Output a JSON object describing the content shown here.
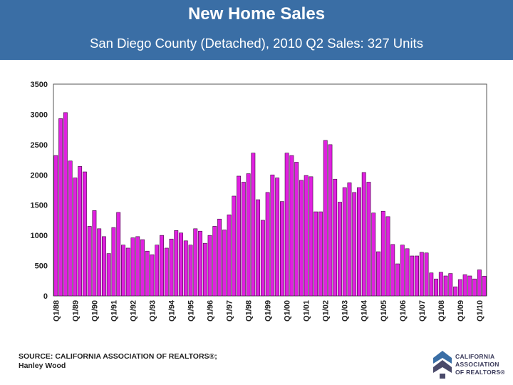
{
  "header": {
    "title": "New Home Sales",
    "subtitle": "San Diego County (Detached), 2010 Q2 Sales: 327 Units"
  },
  "source": {
    "line1": "SOURCE: CALIFORNIA ASSOCIATION OF REALTORS®;",
    "line2": "Hanley Wood"
  },
  "logo": {
    "line1": "CALIFORNIA",
    "line2": "ASSOCIATION",
    "line3": "OF REALTORS®"
  },
  "colors": {
    "header_bg": "#3a6ea5",
    "bar_fill": "#e020e0",
    "bar_stroke": "#3a0a3a"
  },
  "chart_data": {
    "type": "bar",
    "ylim": [
      0,
      3500
    ],
    "yticks": [
      0,
      500,
      1000,
      1500,
      2000,
      2500,
      3000,
      3500
    ],
    "grid": false,
    "xtick_labels": [
      "Q1/88",
      "Q1/89",
      "Q1/90",
      "Q1/91",
      "Q1/92",
      "Q1/93",
      "Q1/94",
      "Q1/95",
      "Q1/96",
      "Q1/97",
      "Q1/98",
      "Q1/99",
      "Q1/00",
      "Q1/01",
      "Q1/02",
      "Q1/03",
      "Q1/04",
      "Q1/05",
      "Q1/06",
      "Q1/07",
      "Q1/08",
      "Q1/09",
      "Q1/10"
    ],
    "values": [
      2320,
      2930,
      3030,
      2230,
      1950,
      2140,
      2050,
      1150,
      1410,
      1110,
      980,
      700,
      1130,
      1380,
      840,
      790,
      960,
      980,
      930,
      740,
      680,
      840,
      1000,
      790,
      940,
      1080,
      1040,
      910,
      840,
      1110,
      1070,
      870,
      1000,
      1150,
      1270,
      1090,
      1340,
      1650,
      1980,
      1880,
      2020,
      2360,
      1590,
      1250,
      1710,
      2000,
      1950,
      1560,
      2360,
      2320,
      2210,
      1910,
      1990,
      1970,
      1390,
      1390,
      2570,
      2500,
      1930,
      1550,
      1790,
      1870,
      1710,
      1790,
      2040,
      1880,
      1370,
      730,
      1400,
      1310,
      850,
      530,
      840,
      780,
      660,
      660,
      720,
      710,
      380,
      280,
      390,
      330,
      370,
      150,
      270,
      350,
      330,
      280,
      430,
      327
    ]
  }
}
